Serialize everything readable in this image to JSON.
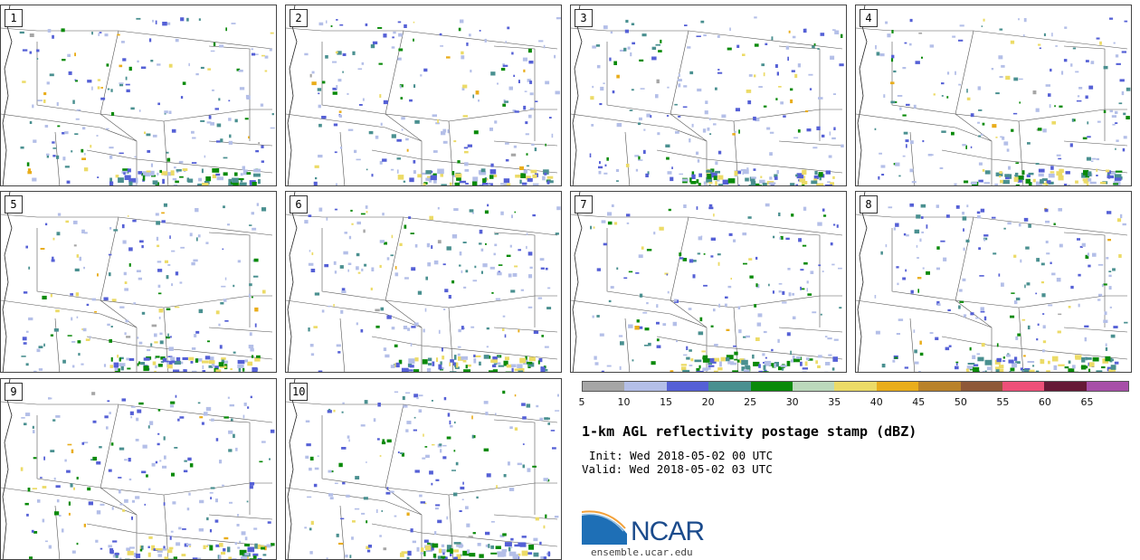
{
  "panels": [
    {
      "label": "1"
    },
    {
      "label": "2"
    },
    {
      "label": "3"
    },
    {
      "label": "4"
    },
    {
      "label": "5"
    },
    {
      "label": "6"
    },
    {
      "label": "7"
    },
    {
      "label": "8"
    },
    {
      "label": "9"
    },
    {
      "label": "10"
    }
  ],
  "colorbar": {
    "ticks": [
      "5",
      "10",
      "15",
      "20",
      "25",
      "30",
      "35",
      "40",
      "45",
      "50",
      "55",
      "60",
      "65"
    ],
    "colors": [
      "#a6a6a6",
      "#b4bfe8",
      "#5560d6",
      "#4a9090",
      "#0a8a0a",
      "#bcd9bc",
      "#ecdb67",
      "#e9ad1b",
      "#b9822a",
      "#8e5838",
      "#ee5079",
      "#661936",
      "#a74fa8"
    ]
  },
  "title": "1-km AGL reflectivity postage stamp (dBZ)",
  "init": "Init: Wed 2018-05-02 00 UTC",
  "valid": "Valid: Wed 2018-05-02 03 UTC",
  "logo": {
    "text": "NCAR",
    "url": "ensemble.ucar.edu"
  }
}
